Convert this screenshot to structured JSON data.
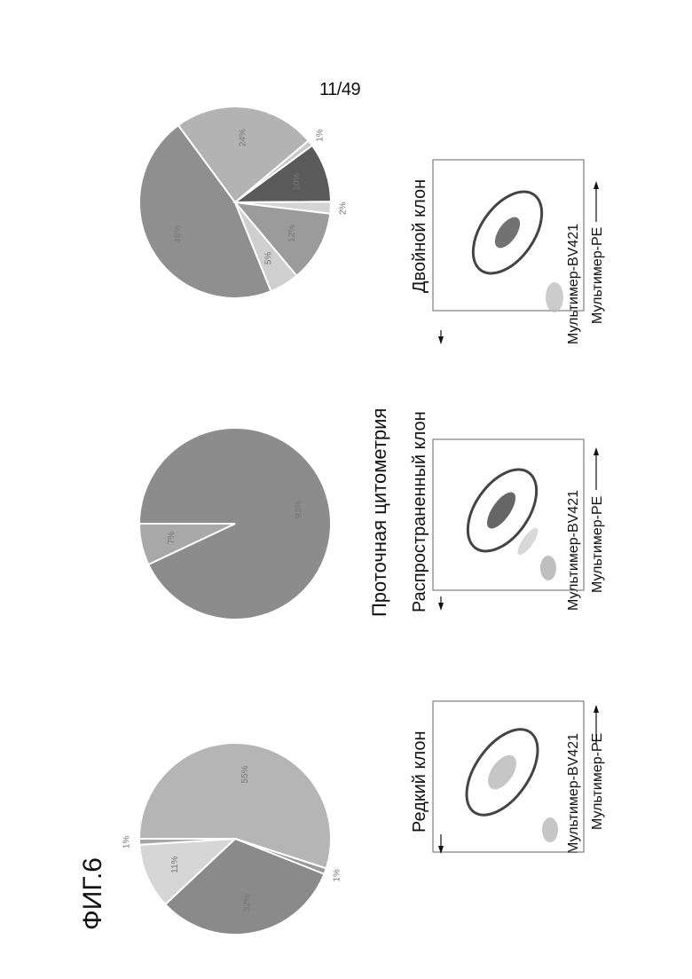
{
  "page_number": "11/49",
  "figure_label": "ФИГ.6",
  "section_title": "Проточная цитометрия",
  "clones": [
    {
      "title": "Редкий клон",
      "y_axis": "Мультимер-BV421",
      "x_axis": "Мультимер-PE"
    },
    {
      "title": "Распространенный клон",
      "y_axis": "Мультимер-BV421",
      "x_axis": "Мультимер-PE"
    },
    {
      "title": "Двойной клон",
      "y_axis": "Мультимер-BV421",
      "x_axis": "Мультимер-PE"
    }
  ],
  "chart_data": [
    {
      "type": "pie",
      "slices": [
        {
          "label": "55%",
          "value": 55,
          "color": "#b5b5b5"
        },
        {
          "label": "1%",
          "value": 1,
          "color": "#9a9a9a"
        },
        {
          "label": "32%",
          "value": 32,
          "color": "#8a8a8a"
        },
        {
          "label": "11%",
          "value": 11,
          "color": "#d6d6d6"
        },
        {
          "label": "1%",
          "value": 1,
          "color": "#a6a6a6"
        }
      ]
    },
    {
      "type": "pie",
      "slices": [
        {
          "label": "93%",
          "value": 93,
          "color": "#8c8c8c"
        },
        {
          "label": "7%",
          "value": 7,
          "color": "#a8a8a8"
        }
      ]
    },
    {
      "type": "pie",
      "slices": [
        {
          "label": "46%",
          "value": 46,
          "color": "#8f8f8f"
        },
        {
          "label": "24%",
          "value": 24,
          "color": "#b3b3b3"
        },
        {
          "label": "1%",
          "value": 1,
          "color": "#c9c9c9"
        },
        {
          "label": "10%",
          "value": 10,
          "color": "#5a5a5a"
        },
        {
          "label": "2%",
          "value": 2,
          "color": "#d4d4d4"
        },
        {
          "label": "12%",
          "value": 12,
          "color": "#9b9b9b"
        },
        {
          "label": "5%",
          "value": 5,
          "color": "#cfcfcf"
        }
      ]
    }
  ]
}
